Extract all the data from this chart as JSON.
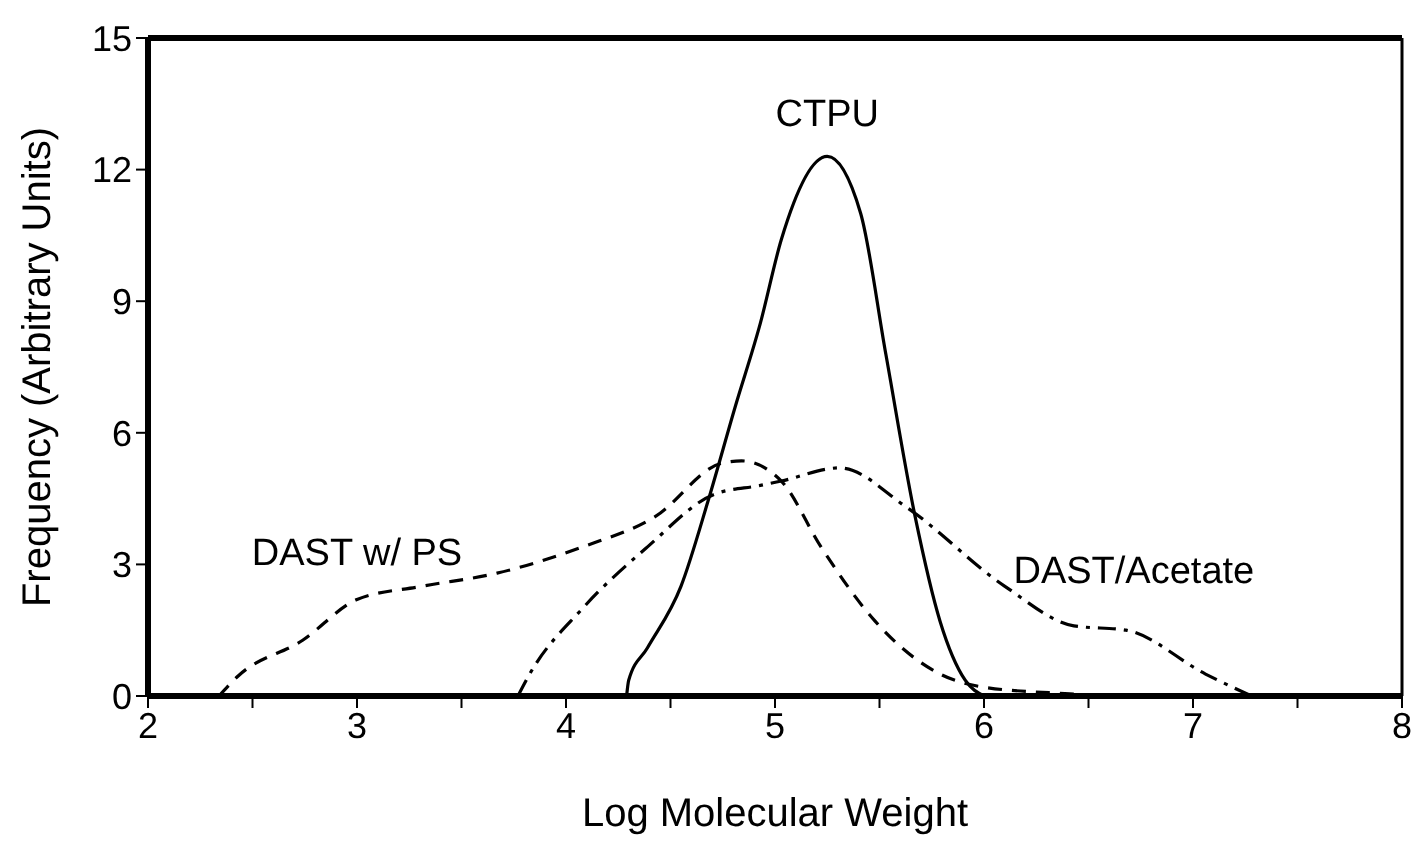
{
  "chart_data": {
    "type": "line",
    "xlabel": "Log Molecular Weight",
    "ylabel": "Frequency (Arbitrary Units)",
    "xlim": [
      2,
      8
    ],
    "xticks": [
      2,
      {
        "value": 2.5,
        "label": null
      },
      3,
      {
        "value": 3.5,
        "label": null
      },
      4,
      {
        "value": 4.5,
        "label": null
      },
      5,
      {
        "value": 5.5,
        "label": null
      },
      6,
      {
        "value": 6.5,
        "label": null
      },
      7,
      {
        "value": 7.5,
        "label": null
      },
      8
    ],
    "ylim": [
      0,
      15
    ],
    "yticks": [
      0,
      3,
      6,
      9,
      12,
      15
    ],
    "marker": "none",
    "series": [
      {
        "name": "CTPU",
        "color": "#000000",
        "line_style": "solid",
        "x": [
          4.29,
          4.3,
          4.39,
          4.55,
          4.68,
          4.81,
          4.93,
          5.03,
          5.25,
          5.41,
          5.53,
          5.67,
          5.79,
          5.91,
          6.0
        ],
        "values": [
          0,
          0.36,
          1.1,
          2.5,
          4.45,
          6.6,
          8.5,
          10.4,
          12.3,
          11,
          7.8,
          4.1,
          1.7,
          0.36,
          0
        ]
      },
      {
        "name": "DAST w/ PS",
        "color": "#000000",
        "line_style": "dashed",
        "x": [
          2.34,
          2.43,
          2.74,
          3.0,
          3.31,
          3.67,
          4.08,
          4.43,
          4.74,
          4.84,
          5.03,
          5.22,
          5.48,
          5.79,
          6.0,
          6.41,
          6.6
        ],
        "values": [
          0,
          0.45,
          1.27,
          2.2,
          2.5,
          2.8,
          3.4,
          4.1,
          5.3,
          5.36,
          4.9,
          3.4,
          1.7,
          0.5,
          0.2,
          0.05,
          0
        ]
      },
      {
        "name": "DAST/Acetate",
        "color": "#000000",
        "line_style": "dashdot",
        "x": [
          3.77,
          3.82,
          4.08,
          4.39,
          4.71,
          4.93,
          5.03,
          5.31,
          5.63,
          6.1,
          6.43,
          6.68,
          7.06,
          7.28
        ],
        "values": [
          0,
          0.45,
          2.0,
          3.4,
          4.6,
          4.8,
          4.9,
          5.2,
          4.3,
          2.5,
          1.6,
          1.5,
          0.5,
          0
        ]
      }
    ]
  }
}
